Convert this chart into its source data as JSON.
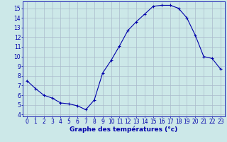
{
  "hours": [
    0,
    1,
    2,
    3,
    4,
    5,
    6,
    7,
    8,
    9,
    10,
    11,
    12,
    13,
    14,
    15,
    16,
    17,
    18,
    19,
    20,
    21,
    22,
    23
  ],
  "temps": [
    7.5,
    6.7,
    6.0,
    5.7,
    5.2,
    5.1,
    4.9,
    4.5,
    5.5,
    8.3,
    9.6,
    11.1,
    12.7,
    13.6,
    14.4,
    15.2,
    15.3,
    15.3,
    15.0,
    14.0,
    12.2,
    10.0,
    9.8,
    8.7
  ],
  "line_color": "#0000aa",
  "marker": "+",
  "bg_color": "#cce8e8",
  "grid_color_major": "#aabbcc",
  "grid_color_minor": "#bbccdd",
  "xlabel": "Graphe des températures (°c)",
  "xlabel_color": "#0000aa",
  "tick_color": "#0000aa",
  "ylim": [
    3.8,
    15.7
  ],
  "xlim": [
    -0.5,
    23.5
  ],
  "yticks": [
    4,
    5,
    6,
    7,
    8,
    9,
    10,
    11,
    12,
    13,
    14,
    15
  ],
  "xticks": [
    0,
    1,
    2,
    3,
    4,
    5,
    6,
    7,
    8,
    9,
    10,
    11,
    12,
    13,
    14,
    15,
    16,
    17,
    18,
    19,
    20,
    21,
    22,
    23
  ],
  "marker_size": 3,
  "line_width": 0.8,
  "tick_fontsize": 5.5,
  "xlabel_fontsize": 6.5
}
